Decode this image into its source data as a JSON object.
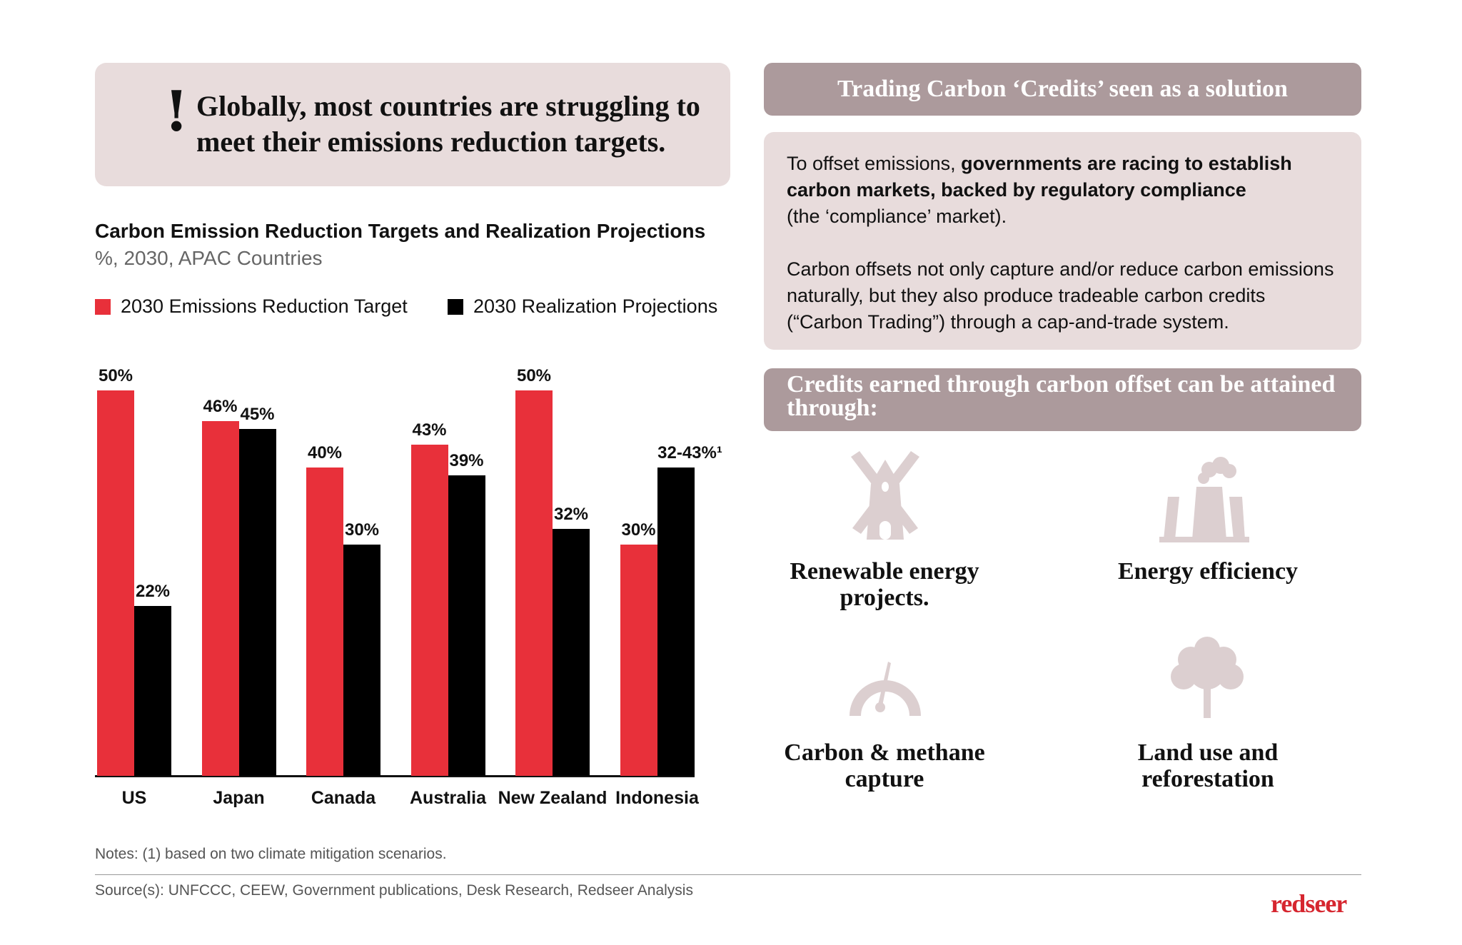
{
  "callout": {
    "icon": "exclamation-icon",
    "mark": "!",
    "text": "Globally, most countries are struggling to meet their emissions reduction targets."
  },
  "chart_data": {
    "type": "bar",
    "title": "Carbon Emission Reduction Targets and Realization Projections",
    "subtitle": "%, 2030, APAC Countries",
    "categories": [
      "US",
      "Japan",
      "Canada",
      "Australia",
      "New Zealand",
      "Indonesia"
    ],
    "series": [
      {
        "name": "2030 Emissions Reduction Target",
        "color": "#e8303a",
        "values": [
          50,
          46,
          40,
          43,
          50,
          30
        ],
        "labels": [
          "50%",
          "46%",
          "40%",
          "43%",
          "50%",
          "30%"
        ]
      },
      {
        "name": "2030 Realization Projections",
        "color": "#000000",
        "values": [
          22,
          45,
          30,
          39,
          32,
          [
            32,
            43
          ]
        ],
        "labels": [
          "22%",
          "45%",
          "30%",
          "39%",
          "32%",
          "32-43%¹"
        ]
      }
    ],
    "ylim": [
      0,
      50
    ],
    "grid": false,
    "legend": "top-left"
  },
  "notes": "Notes: (1) based on two climate mitigation scenarios.",
  "source": "Source(s): UNFCCC, CEEW, Government publications, Desk Research, Redseer Analysis",
  "logo": "redseer",
  "right": {
    "header1": "Trading Carbon ‘Credits’ seen as a solution",
    "para1_pre": "To offset emissions, ",
    "para1_bold": "governments are racing to establish carbon markets, backed by regulatory compliance",
    "para1_post": " (the ‘compliance’ market).",
    "para2": "Carbon offsets not only capture and/or reduce carbon emissions naturally, but they also produce tradeable carbon credits (“Carbon Trading”) through a cap-and-trade system.",
    "header2": "Credits earned through carbon offset can be attained through:",
    "items": [
      {
        "icon": "windmill-icon",
        "label": "Renewable energy projects."
      },
      {
        "icon": "power-plant-icon",
        "label": "Energy efficiency"
      },
      {
        "icon": "gauge-icon",
        "label": "Carbon & methane capture"
      },
      {
        "icon": "tree-icon",
        "label": "Land use and reforestation"
      }
    ],
    "icon_color": "#dccfd0"
  }
}
